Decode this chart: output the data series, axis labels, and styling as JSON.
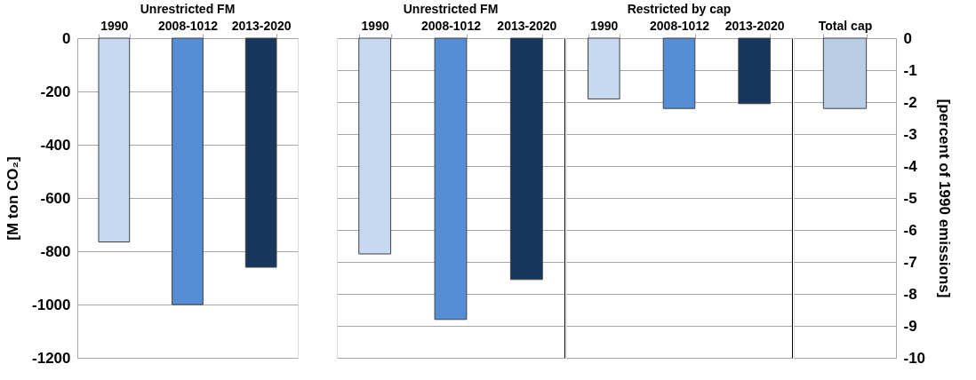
{
  "chart_data": [
    {
      "type": "bar",
      "title": "Unrestricted FM",
      "ylabel": "[M ton CO₂]",
      "categories": [
        "1990",
        "2008-1012",
        "2013-2020"
      ],
      "values": [
        -765,
        -1000,
        -860
      ],
      "colors": [
        "#c6d9f1",
        "#558ed5",
        "#17375e"
      ],
      "ylim": [
        -1200,
        0
      ],
      "yticks": [
        0,
        -200,
        -400,
        -600,
        -800,
        -1000,
        -1200
      ],
      "grid": "y"
    },
    {
      "type": "bar",
      "title": "Unrestricted FM",
      "categories": [
        "1990",
        "2008-1012",
        "2013-2020"
      ],
      "series": [
        {
          "axis": "y2",
          "values": [
            -6.75,
            -8.8,
            -7.55
          ]
        }
      ],
      "colors": [
        "#c6d9f1",
        "#558ed5",
        "#17375e"
      ],
      "y2lim": [
        -10,
        0
      ],
      "y2ticks": [
        0,
        -1,
        -2,
        -3,
        -4,
        -5,
        -6,
        -7,
        -8,
        -9,
        -10
      ],
      "grid": "y",
      "tick_labels": "x"
    },
    {
      "type": "bar",
      "title": "Restricted by cap",
      "categories": [
        "1990",
        "2008-1012",
        "2013-2020"
      ],
      "series": [
        {
          "axis": "y2",
          "values": [
            -1.9,
            -2.2,
            -2.05
          ]
        }
      ],
      "colors": [
        "#c6d9f1",
        "#558ed5",
        "#17375e"
      ],
      "y2lim": [
        -10,
        0
      ],
      "y2ticks": [
        0,
        -1,
        -2,
        -3,
        -4,
        -5,
        -6,
        -7,
        -8,
        -9,
        -10
      ],
      "grid": "y",
      "tick_labels": "x"
    },
    {
      "type": "bar",
      "y2label": "[percent of 1990 emissions]",
      "categories": [
        "Total cap"
      ],
      "series": [
        {
          "axis": "y2",
          "values": [
            -2.2
          ]
        }
      ],
      "colors": [
        "#b9cde5"
      ],
      "y2lim": [
        -10,
        0
      ],
      "y2ticks": [
        0,
        -1,
        -2,
        -3,
        -4,
        -5,
        -6,
        -7,
        -8,
        -9,
        -10
      ],
      "grid": "y"
    }
  ]
}
